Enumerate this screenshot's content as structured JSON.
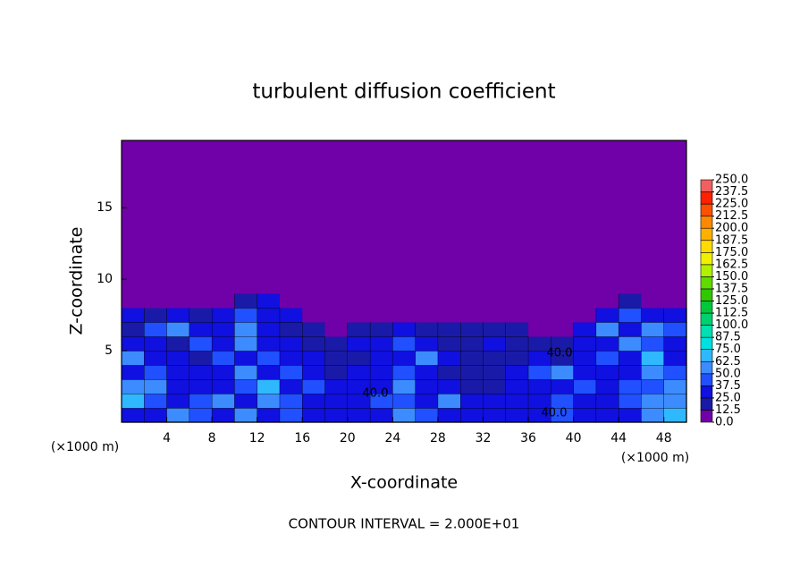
{
  "chart_data": {
    "type": "contour",
    "title": "turbulent diffusion coefficient",
    "xlabel": "X-coordinate",
    "ylabel": "Z-coordinate",
    "x_unit": "(×1000 m)",
    "footer": "CONTOUR INTERVAL = 2.000E+01",
    "contour_labels": [
      "40.0",
      "40.0",
      "40.0"
    ],
    "xlim": [
      0,
      50
    ],
    "ylim": [
      0,
      19.7
    ],
    "xticks": [
      4,
      8,
      12,
      16,
      20,
      24,
      28,
      32,
      36,
      40,
      44,
      48
    ],
    "yticks": [
      5,
      10,
      15
    ],
    "x": [
      1,
      3,
      5,
      7,
      9,
      11,
      13,
      15,
      17,
      19,
      21,
      23,
      25,
      27,
      29,
      31,
      33,
      35,
      37,
      39,
      41,
      43,
      45,
      47,
      49
    ],
    "z": [
      0.5,
      1.5,
      2.5,
      3.5,
      4.5,
      5.5,
      6.5,
      7.5,
      8.5,
      9.5
    ],
    "values": [
      [
        25,
        30,
        55,
        45,
        35,
        50,
        30,
        45,
        35,
        30,
        25,
        35,
        50,
        40,
        30,
        25,
        30,
        35,
        30,
        40,
        35,
        30,
        35,
        60,
        70
      ],
      [
        65,
        45,
        35,
        40,
        50,
        30,
        55,
        40,
        30,
        35,
        25,
        40,
        45,
        35,
        55,
        30,
        25,
        30,
        35,
        45,
        30,
        35,
        40,
        55,
        60
      ],
      [
        60,
        55,
        30,
        25,
        35,
        40,
        65,
        30,
        45,
        25,
        30,
        35,
        50,
        25,
        30,
        20,
        20,
        30,
        25,
        35,
        40,
        30,
        45,
        40,
        50
      ],
      [
        30,
        40,
        25,
        35,
        30,
        55,
        35,
        40,
        25,
        20,
        30,
        25,
        40,
        30,
        20,
        15,
        20,
        25,
        45,
        50,
        30,
        25,
        35,
        55,
        40
      ],
      [
        55,
        25,
        30,
        20,
        40,
        30,
        45,
        25,
        30,
        20,
        15,
        35,
        25,
        50,
        25,
        20,
        20,
        15,
        30,
        20,
        25,
        45,
        30,
        65,
        30
      ],
      [
        25,
        30,
        20,
        45,
        35,
        60,
        25,
        30,
        20,
        20,
        25,
        30,
        45,
        30,
        20,
        15,
        25,
        20,
        20,
        15,
        25,
        30,
        55,
        40,
        30
      ],
      [
        20,
        45,
        55,
        30,
        25,
        50,
        30,
        20,
        15,
        0,
        20,
        15,
        25,
        20,
        15,
        20,
        15,
        20,
        0,
        0,
        30,
        50,
        35,
        60,
        40
      ],
      [
        30,
        20,
        25,
        20,
        30,
        40,
        35,
        25,
        0,
        0,
        0,
        0,
        0,
        0,
        0,
        0,
        0,
        0,
        0,
        0,
        0,
        30,
        45,
        30,
        25
      ],
      [
        0,
        0,
        0,
        0,
        0,
        20,
        25,
        0,
        0,
        0,
        0,
        0,
        0,
        0,
        0,
        0,
        0,
        0,
        0,
        0,
        0,
        0,
        20,
        0,
        0
      ],
      [
        0,
        0,
        0,
        0,
        0,
        0,
        0,
        0,
        0,
        0,
        0,
        0,
        0,
        0,
        0,
        0,
        0,
        0,
        0,
        0,
        0,
        0,
        0,
        0,
        0
      ]
    ],
    "levels": [
      {
        "value": 0,
        "label": "0.0"
      },
      {
        "value": 12.5,
        "label": "12.5"
      },
      {
        "value": 25,
        "label": "25.0"
      },
      {
        "value": 37.5,
        "label": "37.5"
      },
      {
        "value": 50,
        "label": "50.0"
      },
      {
        "value": 62.5,
        "label": "62.5"
      },
      {
        "value": 75,
        "label": "75.0"
      },
      {
        "value": 87.5,
        "label": "87.5"
      },
      {
        "value": 100,
        "label": "100.0"
      },
      {
        "value": 112.5,
        "label": "112.5"
      },
      {
        "value": 125,
        "label": "125.0"
      },
      {
        "value": 137.5,
        "label": "137.5"
      },
      {
        "value": 150,
        "label": "150.0"
      },
      {
        "value": 162.5,
        "label": "162.5"
      },
      {
        "value": 175,
        "label": "175.0"
      },
      {
        "value": 187.5,
        "label": "187.5"
      },
      {
        "value": 200,
        "label": "200.0"
      },
      {
        "value": 212.5,
        "label": "212.5"
      },
      {
        "value": 225,
        "label": "225.0"
      },
      {
        "value": 237.5,
        "label": "237.5"
      },
      {
        "value": 250,
        "label": "250.0"
      }
    ],
    "colors": [
      "#7000a8",
      "#1a1aa8",
      "#1010e0",
      "#2050ff",
      "#3c8cff",
      "#30b8ff",
      "#00e0e0",
      "#00e0b0",
      "#00d070",
      "#00c83c",
      "#30c800",
      "#60dc00",
      "#b0f000",
      "#f0f000",
      "#ffdc00",
      "#ffb000",
      "#ff8800",
      "#ff5000",
      "#ff2000",
      "#f06060"
    ]
  }
}
